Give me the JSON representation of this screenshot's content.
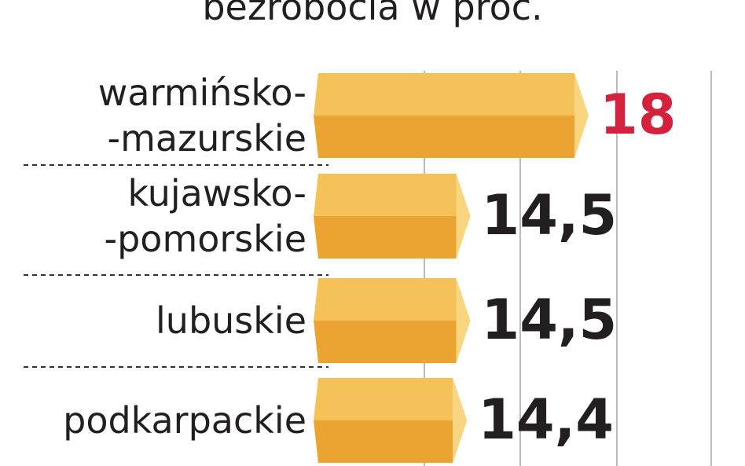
{
  "chart_data": {
    "type": "bar",
    "orientation": "horizontal",
    "title": "bezrobocia w proc.",
    "categories": [
      "warmińsko-\n-mazurskie",
      "kujawsko-\n-pomorskie",
      "lubuskie",
      "podkarpackie"
    ],
    "values": [
      18,
      14.5,
      14.5,
      14.4
    ],
    "value_labels": [
      "18",
      "14,5",
      "14,5",
      "14,4"
    ],
    "value_label_colors": [
      "#d4213d",
      "#231f20",
      "#231f20",
      "#231f20"
    ],
    "color": "#f2b640",
    "xlim": [
      10,
      22
    ]
  }
}
